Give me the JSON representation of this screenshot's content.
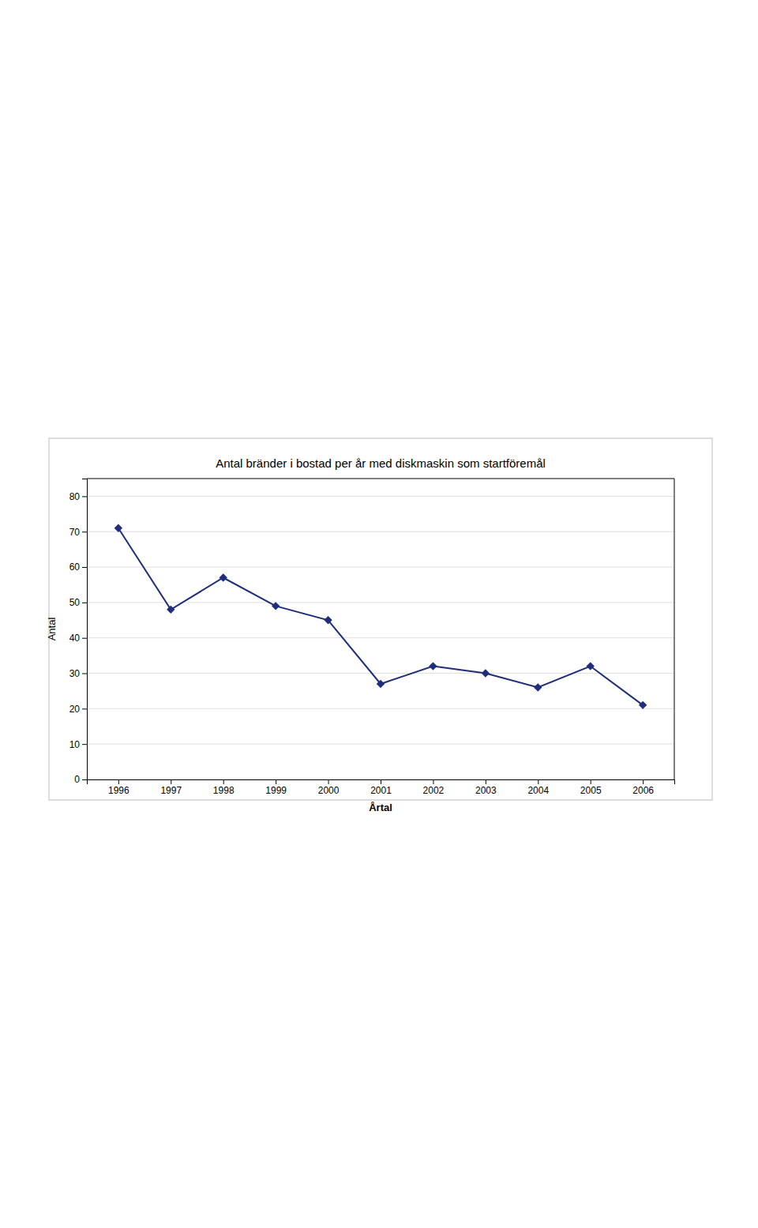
{
  "chart_data": {
    "type": "line",
    "title": "Antal bränder i bostad per år med diskmaskin som startföremål",
    "xlabel": "Årtal",
    "ylabel": "Antal",
    "x": [
      1996,
      1997,
      1998,
      1999,
      2000,
      2001,
      2002,
      2003,
      2004,
      2005,
      2006
    ],
    "values": [
      71,
      48,
      57,
      49,
      45,
      27,
      32,
      30,
      26,
      32,
      21
    ],
    "xlim": [
      1995.4,
      2006.6
    ],
    "xticks": [
      1996,
      1997,
      1998,
      1999,
      2000,
      2001,
      2002,
      2003,
      2004,
      2005,
      2006
    ],
    "ylim": [
      0,
      85
    ],
    "yticks": [
      0,
      10,
      20,
      30,
      40,
      50,
      60,
      70,
      80
    ],
    "color": "#1F2D7B",
    "marker": "diamond",
    "grid": "y"
  }
}
